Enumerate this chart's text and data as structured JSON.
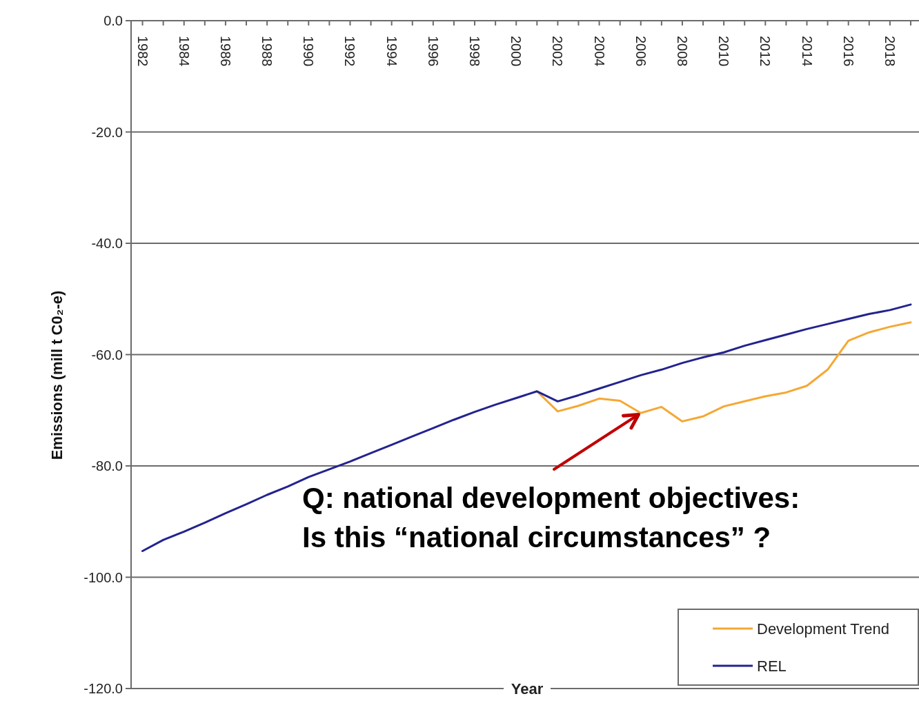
{
  "chart_data": {
    "type": "line",
    "xlabel": "Year",
    "ylabel": "Emissions (mill t C0₂-e)",
    "xlim": [
      1981.45,
      2019.4
    ],
    "ylim": [
      -120,
      0
    ],
    "xticks": [
      1982,
      {
        "value": 1983,
        "label": null
      },
      1984,
      {
        "value": 1985,
        "label": null
      },
      1986,
      {
        "value": 1987,
        "label": null
      },
      1988,
      {
        "value": 1989,
        "label": null
      },
      1990,
      {
        "value": 1991,
        "label": null
      },
      1992,
      {
        "value": 1993,
        "label": null
      },
      1994,
      {
        "value": 1995,
        "label": null
      },
      1996,
      {
        "value": 1997,
        "label": null
      },
      1998,
      {
        "value": 1999,
        "label": null
      },
      2000,
      {
        "value": 2001,
        "label": null
      },
      2002,
      {
        "value": 2003,
        "label": null
      },
      2004,
      {
        "value": 2005,
        "label": null
      },
      2006,
      {
        "value": 2007,
        "label": null
      },
      2008,
      {
        "value": 2009,
        "label": null
      },
      2010,
      {
        "value": 2011,
        "label": null
      },
      2012,
      {
        "value": 2013,
        "label": null
      },
      2014,
      {
        "value": 2015,
        "label": null
      },
      2016,
      {
        "value": 2017,
        "label": null
      },
      2018,
      {
        "value": 2019,
        "label": null
      }
    ],
    "yticks": [
      {
        "value": 0,
        "label": "0.0"
      },
      {
        "value": -20,
        "label": "-20.0"
      },
      {
        "value": -40,
        "label": "-40.0"
      },
      {
        "value": -60,
        "label": "-60.0"
      },
      {
        "value": -80,
        "label": "-80.0"
      },
      {
        "value": -100,
        "label": "-100.0"
      },
      {
        "value": -120,
        "label": "-120.0"
      }
    ],
    "grid": "y",
    "legend": "bottom right",
    "marker": "none",
    "line_style": "solid",
    "series": [
      {
        "name": "Development Trend",
        "color": "#f5a833",
        "x": [
          2001,
          2002,
          2003,
          2004,
          2005,
          2006,
          2007,
          2008,
          2009,
          2010,
          2011,
          2012,
          2013,
          2014,
          2015,
          2016,
          2017,
          2018,
          2019
        ],
        "values": [
          -66.6,
          -70.2,
          -69.2,
          -67.9,
          -68.3,
          -70.5,
          -69.4,
          -72.0,
          -71.1,
          -69.3,
          -68.4,
          -67.5,
          -66.8,
          -65.6,
          -62.7,
          -57.5,
          -56.0,
          -55.0,
          -54.2
        ]
      },
      {
        "name": "REL",
        "color": "#23238f",
        "x": [
          1982,
          1983,
          1984,
          1985,
          1986,
          1987,
          1988,
          1989,
          1990,
          1991,
          1992,
          1993,
          1994,
          1995,
          1996,
          1997,
          1998,
          1999,
          2000,
          2001,
          2002,
          2003,
          2004,
          2005,
          2006,
          2007,
          2008,
          2009,
          2010,
          2011,
          2012,
          2013,
          2014,
          2015,
          2016,
          2017,
          2018,
          2019
        ],
        "values": [
          -95.3,
          -93.3,
          -91.8,
          -90.2,
          -88.5,
          -86.9,
          -85.2,
          -83.7,
          -82.0,
          -80.6,
          -79.2,
          -77.7,
          -76.2,
          -74.7,
          -73.2,
          -71.7,
          -70.3,
          -69.0,
          -67.8,
          -66.6,
          -68.4,
          -67.3,
          -66.1,
          -64.9,
          -63.7,
          -62.7,
          -61.5,
          -60.5,
          -59.6,
          -58.4,
          -57.4,
          -56.4,
          -55.4,
          -54.5,
          -53.6,
          -52.7,
          -52.0,
          -51.0
        ]
      }
    ],
    "annotations": [
      {
        "text": "Q:  national development objectives:",
        "x": 2006,
        "y": -70.5
      },
      "Is this “national circumstances” ?"
    ]
  }
}
